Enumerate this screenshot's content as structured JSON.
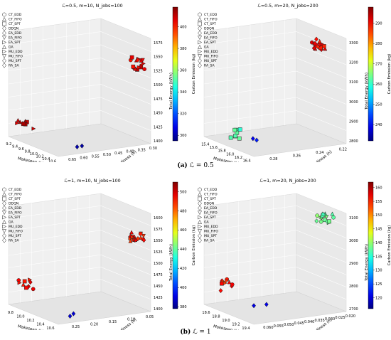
{
  "captions": [
    {
      "label": "(a)",
      "text": "ℒ = 0.5"
    },
    {
      "label": "(b)",
      "text": "ℒ = 1"
    }
  ],
  "chart_data": [
    {
      "type": "scatter",
      "title": "ℒ=0.5, m=10, N_jobs=100",
      "xlabel": "Makespan (h)",
      "ylabel": "Avg. Tardiness (h)",
      "zlabel": "Total Energy (kWh)",
      "colorbar_label": "Carbon Emission (kg)",
      "x_ticks": [
        "9.2",
        "9.4",
        "9.6",
        "9.8",
        "10.0",
        "10.2",
        "10.4",
        "10.6"
      ],
      "y_ticks": [
        "0.30",
        "0.35",
        "0.40",
        "0.45",
        "0.50",
        "0.55",
        "0.60",
        "0.65"
      ],
      "z_ticks": [
        "1400",
        "1425",
        "1450",
        "1475",
        "1500",
        "1525",
        "1550",
        "1575"
      ],
      "colorbar_ticks": [
        "300",
        "320",
        "340",
        "360",
        "380",
        "400"
      ],
      "colorbar_range": [
        295,
        418
      ],
      "legend": [
        "CT_EDD",
        "CT_FIFO",
        "CT_SPT",
        "DDQN",
        "EA_EDD",
        "EA_FIFO",
        "EA_SPT",
        "GA",
        "MU_EDD",
        "MU_FIFO",
        "MU_SPT",
        "RA_SA"
      ],
      "clusters": [
        {
          "method": "mixed",
          "x": 9.3,
          "y": 0.33,
          "z": 1420,
          "c": 410,
          "n": 9
        },
        {
          "method": "mixed",
          "x": 10.55,
          "y": 0.62,
          "z": 1540,
          "c": 405,
          "n": 18
        },
        {
          "method": "EA_EDD",
          "x": 10.15,
          "y": 0.45,
          "z": 1385,
          "c": 300,
          "n": 2
        }
      ]
    },
    {
      "type": "scatter",
      "title": "ℒ=0.5, m=20, N_jobs=200",
      "xlabel": "Makespan (h)",
      "ylabel": "Avg. Tardiness (h)",
      "zlabel": "Total Energy (kWh)",
      "colorbar_label": "Carbon Emission (kg)",
      "x_ticks": [
        "15.4",
        "15.6",
        "15.8",
        "16.0",
        "16.2",
        "16.4"
      ],
      "y_ticks": [
        "0.22",
        "0.24",
        "0.26",
        "0.28"
      ],
      "z_ticks": [
        "2800",
        "2900",
        "3000",
        "3100",
        "3200",
        "3300"
      ],
      "colorbar_ticks": [
        "240",
        "250",
        "260",
        "270",
        "280",
        "290"
      ],
      "colorbar_range": [
        232,
        298
      ],
      "legend": [
        "CT_EDD",
        "CT_FIFO",
        "CT_SPT",
        "DDQN",
        "EA_EDD",
        "EA_FIFO",
        "EA_SPT",
        "GA",
        "MU_EDD",
        "MU_FIFO",
        "MU_SPT",
        "RA_SA"
      ],
      "clusters": [
        {
          "method": "mixed",
          "x": 16.2,
          "y": 0.27,
          "z": 3280,
          "c": 290,
          "n": 20
        },
        {
          "method": "CT_SPT",
          "x": 15.7,
          "y": 0.23,
          "z": 2820,
          "c": 262,
          "n": 8
        },
        {
          "method": "EA_EDD",
          "x": 16.0,
          "y": 0.23,
          "z": 2810,
          "c": 240,
          "n": 2
        }
      ]
    },
    {
      "type": "scatter",
      "title": "ℒ=1, m=10, N_jobs=100",
      "xlabel": "Makespan (h)",
      "ylabel": "Avg. Tardiness (h)",
      "zlabel": "Total Energy (kWh)",
      "colorbar_label": "Carbon Emission (kg)",
      "x_ticks": [
        "9.8",
        "10.0",
        "10.2",
        "10.4",
        "10.6"
      ],
      "y_ticks": [
        "0.05",
        "0.10",
        "0.15",
        "0.20",
        "0.25"
      ],
      "z_ticks": [
        "1400",
        "1425",
        "1450",
        "1475",
        "1500",
        "1525",
        "1550",
        "1575",
        "1600"
      ],
      "colorbar_ticks": [
        "380",
        "400",
        "420",
        "440",
        "460",
        "480",
        "500"
      ],
      "colorbar_range": [
        378,
        510
      ],
      "legend": [
        "CT_EDD",
        "CT_FIFO",
        "CT_SPT",
        "DDQN",
        "EA_EDD",
        "EA_FIFO",
        "EA_SPT",
        "GA",
        "MU_EDD",
        "MU_FIFO",
        "MU_SPT",
        "RA_SA"
      ],
      "clusters": [
        {
          "method": "mixed",
          "x": 9.8,
          "y": 0.08,
          "z": 1430,
          "c": 495,
          "n": 9
        },
        {
          "method": "mixed",
          "x": 10.55,
          "y": 0.23,
          "z": 1560,
          "c": 490,
          "n": 18
        },
        {
          "method": "EA_EDD",
          "x": 10.3,
          "y": 0.12,
          "z": 1395,
          "c": 385,
          "n": 2
        }
      ]
    },
    {
      "type": "scatter",
      "title": "ℒ=1, m=20, N_jobs=200",
      "xlabel": "Makespan (h)",
      "ylabel": "Avg. Tardiness (h)",
      "zlabel": "Total Energy (kWh)",
      "colorbar_label": "Carbon Emission (kg)",
      "x_ticks": [
        "18.6",
        "18.8",
        "19.0",
        "19.2",
        "19.4"
      ],
      "y_ticks": [
        "0.020",
        "0.025",
        "0.030",
        "0.035",
        "0.040",
        "0.045",
        "0.050",
        "0.055",
        "0.060"
      ],
      "z_ticks": [
        "2700",
        "2800",
        "2900",
        "3000",
        "3100"
      ],
      "colorbar_ticks": [
        "120",
        "125",
        "130",
        "135",
        "140",
        "145",
        "150",
        "155",
        "160"
      ],
      "colorbar_range": [
        116,
        162
      ],
      "legend": [
        "CT_EDD",
        "CT_FIFO",
        "CT_SPT",
        "DDQN",
        "EA_EDD",
        "EA_FIFO",
        "EA_SPT",
        "GA",
        "MU_EDD",
        "MU_FIFO",
        "MU_SPT",
        "RA_SA"
      ],
      "clusters": [
        {
          "method": "mixed",
          "x": 19.3,
          "y": 0.055,
          "z": 3100,
          "c": 138,
          "n": 18
        },
        {
          "method": "mixed",
          "x": 18.7,
          "y": 0.025,
          "z": 2780,
          "c": 155,
          "n": 10
        },
        {
          "method": "EA_EDD",
          "x": 19.1,
          "y": 0.03,
          "z": 2720,
          "c": 120,
          "n": 2
        }
      ]
    }
  ]
}
